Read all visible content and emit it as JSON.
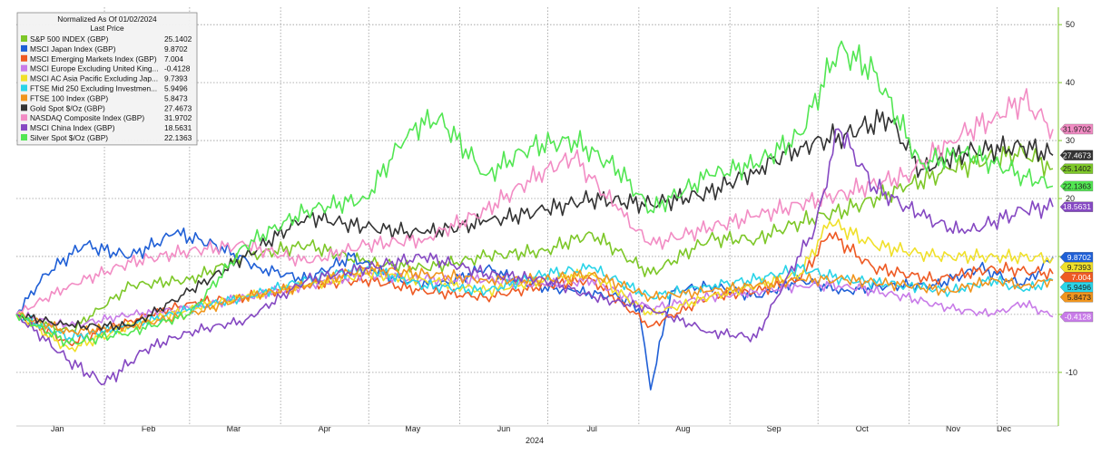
{
  "chart_data": {
    "type": "line",
    "title": "Normalized As Of 01/02/2024",
    "subtitle": "Last Price",
    "xlabel": "2024",
    "ylabel": "",
    "x_range": [
      "2024-01-02",
      "2024-12-20"
    ],
    "ylim": [
      -18,
      53
    ],
    "y_ticks": [
      -10,
      0,
      10,
      20,
      30,
      40,
      50
    ],
    "y_tick_labels": [
      "-10",
      "",
      "10",
      "20",
      "30",
      "40",
      "50"
    ],
    "y_axis_side": "right",
    "months": [
      "Jan",
      "Feb",
      "Mar",
      "Apr",
      "May",
      "Jun",
      "Jul",
      "Aug",
      "Sep",
      "Oct",
      "Nov",
      "Dec"
    ],
    "legend_position": "top-left",
    "grid": true,
    "series": [
      {
        "name": "S&P 500 INDEX (GBP)",
        "last": "25.1402",
        "color": "#7dc728",
        "tag_text": "#222",
        "dates": [
          "2024-01-02",
          "2024-01-20",
          "2024-02-10",
          "2024-03-01",
          "2024-03-20",
          "2024-04-10",
          "2024-04-30",
          "2024-05-20",
          "2024-06-10",
          "2024-06-30",
          "2024-07-16",
          "2024-08-05",
          "2024-08-25",
          "2024-09-10",
          "2024-09-25",
          "2024-10-10",
          "2024-10-31",
          "2024-11-15",
          "2024-11-30",
          "2024-12-10",
          "2024-12-20"
        ],
        "values": [
          0,
          -3,
          5,
          6,
          10,
          12,
          9,
          8,
          10,
          11,
          14,
          7,
          13,
          13,
          16,
          18,
          22,
          25,
          27,
          28,
          25.1402
        ]
      },
      {
        "name": "MSCI Japan Index (GBP)",
        "last": "9.8702",
        "color": "#1f5fd6",
        "tag_text": "#fff",
        "dates": [
          "2024-01-02",
          "2024-01-12",
          "2024-01-25",
          "2024-02-10",
          "2024-02-25",
          "2024-03-10",
          "2024-03-25",
          "2024-04-10",
          "2024-04-25",
          "2024-05-10",
          "2024-05-25",
          "2024-06-10",
          "2024-06-25",
          "2024-07-10",
          "2024-07-25",
          "2024-08-01",
          "2024-08-05",
          "2024-08-12",
          "2024-08-25",
          "2024-09-10",
          "2024-09-25",
          "2024-10-10",
          "2024-10-25",
          "2024-11-10",
          "2024-11-25",
          "2024-12-10",
          "2024-12-20"
        ],
        "values": [
          0,
          7,
          12,
          10,
          14,
          12,
          8,
          6,
          10,
          6,
          5,
          8,
          5,
          4,
          3,
          1,
          -13,
          4,
          5,
          3,
          6,
          4,
          5,
          5,
          8,
          5,
          9.8702
        ]
      },
      {
        "name": "MSCI Emerging Markets Index (GBP)",
        "last": "7.004",
        "color": "#ee5a24",
        "tag_text": "#fff",
        "dates": [
          "2024-01-02",
          "2024-01-20",
          "2024-02-10",
          "2024-03-01",
          "2024-03-20",
          "2024-04-10",
          "2024-04-30",
          "2024-05-20",
          "2024-06-10",
          "2024-06-30",
          "2024-07-16",
          "2024-08-05",
          "2024-08-25",
          "2024-09-10",
          "2024-09-25",
          "2024-10-05",
          "2024-10-20",
          "2024-11-10",
          "2024-11-30",
          "2024-12-20"
        ],
        "values": [
          0,
          -5,
          -1,
          2,
          3,
          5,
          6,
          4,
          3,
          5,
          6,
          -2,
          3,
          4,
          6,
          14,
          8,
          6,
          8,
          7.004
        ]
      },
      {
        "name": "MSCI Europe Excluding United King...",
        "last": "-0.4128",
        "color": "#c87be8",
        "tag_text": "#fff",
        "dates": [
          "2024-01-02",
          "2024-01-20",
          "2024-02-10",
          "2024-03-01",
          "2024-03-20",
          "2024-04-10",
          "2024-04-30",
          "2024-05-20",
          "2024-06-10",
          "2024-06-30",
          "2024-07-16",
          "2024-08-05",
          "2024-08-25",
          "2024-09-10",
          "2024-09-25",
          "2024-10-10",
          "2024-10-31",
          "2024-11-15",
          "2024-11-30",
          "2024-12-10",
          "2024-12-20"
        ],
        "values": [
          0,
          -2,
          0,
          1,
          3,
          5,
          7,
          6,
          6,
          5,
          6,
          1,
          3,
          4,
          5,
          5,
          3,
          1,
          0,
          2,
          -0.4128
        ]
      },
      {
        "name": "MSCI AC Asia Pacific Excluding Jap...",
        "last": "9.7393",
        "color": "#f0e02a",
        "tag_text": "#222",
        "dates": [
          "2024-01-02",
          "2024-01-20",
          "2024-02-10",
          "2024-03-01",
          "2024-03-20",
          "2024-04-10",
          "2024-04-30",
          "2024-05-20",
          "2024-06-10",
          "2024-06-30",
          "2024-07-16",
          "2024-08-05",
          "2024-08-25",
          "2024-09-10",
          "2024-09-25",
          "2024-10-05",
          "2024-10-20",
          "2024-11-10",
          "2024-11-30",
          "2024-12-20"
        ],
        "values": [
          0,
          -6,
          -2,
          1,
          3,
          5,
          7,
          6,
          4,
          6,
          7,
          0,
          3,
          5,
          7,
          16,
          12,
          10,
          10,
          9.7393
        ]
      },
      {
        "name": "FTSE Mid 250 Excluding Investmen...",
        "last": "5.9496",
        "color": "#2ad4e8",
        "tag_text": "#222",
        "dates": [
          "2024-01-02",
          "2024-01-20",
          "2024-02-10",
          "2024-03-01",
          "2024-03-20",
          "2024-04-10",
          "2024-04-30",
          "2024-05-20",
          "2024-06-10",
          "2024-06-30",
          "2024-07-16",
          "2024-08-05",
          "2024-08-25",
          "2024-09-10",
          "2024-09-25",
          "2024-10-10",
          "2024-10-31",
          "2024-11-15",
          "2024-11-30",
          "2024-12-10",
          "2024-12-20"
        ],
        "values": [
          0,
          -4,
          -2,
          1,
          3,
          6,
          8,
          5,
          4,
          7,
          8,
          3,
          5,
          6,
          8,
          6,
          5,
          4,
          6,
          4,
          5.9496
        ]
      },
      {
        "name": "FTSE 100 Index (GBP)",
        "last": "5.8473",
        "color": "#f0951e",
        "tag_text": "#222",
        "dates": [
          "2024-01-02",
          "2024-01-20",
          "2024-02-10",
          "2024-03-01",
          "2024-03-20",
          "2024-04-10",
          "2024-04-30",
          "2024-05-20",
          "2024-06-10",
          "2024-06-30",
          "2024-07-16",
          "2024-08-05",
          "2024-08-25",
          "2024-09-10",
          "2024-09-25",
          "2024-10-10",
          "2024-10-31",
          "2024-11-15",
          "2024-11-30",
          "2024-12-10",
          "2024-12-20"
        ],
        "values": [
          0,
          -3,
          -2,
          0,
          3,
          5,
          8,
          7,
          6,
          6,
          7,
          3,
          4,
          5,
          6,
          6,
          5,
          4,
          6,
          5,
          5.8473
        ]
      },
      {
        "name": "Gold Spot $/Oz (GBP)",
        "last": "27.4673",
        "color": "#333333",
        "tag_text": "#fff",
        "dates": [
          "2024-01-02",
          "2024-01-20",
          "2024-02-10",
          "2024-03-01",
          "2024-03-20",
          "2024-04-10",
          "2024-04-30",
          "2024-05-20",
          "2024-06-10",
          "2024-06-30",
          "2024-07-16",
          "2024-08-05",
          "2024-08-25",
          "2024-09-10",
          "2024-09-25",
          "2024-10-10",
          "2024-10-25",
          "2024-11-05",
          "2024-11-20",
          "2024-12-10",
          "2024-12-20"
        ],
        "values": [
          0,
          -2,
          -2,
          4,
          10,
          17,
          15,
          14,
          16,
          18,
          20,
          19,
          21,
          25,
          29,
          31,
          34,
          25,
          28,
          29,
          27.4673
        ]
      },
      {
        "name": "NASDAQ Composite Index (GBP)",
        "last": "31.9702",
        "color": "#f28cc4",
        "tag_text": "#222",
        "dates": [
          "2024-01-02",
          "2024-01-20",
          "2024-02-10",
          "2024-03-01",
          "2024-03-20",
          "2024-04-10",
          "2024-04-30",
          "2024-05-20",
          "2024-06-10",
          "2024-06-30",
          "2024-07-10",
          "2024-07-25",
          "2024-08-05",
          "2024-08-25",
          "2024-09-10",
          "2024-09-25",
          "2024-10-10",
          "2024-10-31",
          "2024-11-15",
          "2024-11-30",
          "2024-12-10",
          "2024-12-20"
        ],
        "values": [
          0,
          5,
          9,
          11,
          12,
          9,
          12,
          13,
          18,
          25,
          27,
          18,
          12,
          15,
          17,
          19,
          21,
          24,
          30,
          34,
          37,
          31.9702
        ]
      },
      {
        "name": "MSCI China Index (GBP)",
        "last": "18.5631",
        "color": "#8548c2",
        "tag_text": "#fff",
        "dates": [
          "2024-01-02",
          "2024-01-20",
          "2024-02-01",
          "2024-02-15",
          "2024-03-01",
          "2024-03-20",
          "2024-04-10",
          "2024-04-30",
          "2024-05-20",
          "2024-06-10",
          "2024-06-30",
          "2024-07-16",
          "2024-08-05",
          "2024-08-25",
          "2024-09-10",
          "2024-09-20",
          "2024-09-30",
          "2024-10-08",
          "2024-10-20",
          "2024-11-05",
          "2024-11-20",
          "2024-12-10",
          "2024-12-20"
        ],
        "values": [
          0,
          -8,
          -12,
          -6,
          -3,
          -1,
          6,
          8,
          10,
          7,
          6,
          3,
          1,
          -3,
          -4,
          6,
          15,
          32,
          22,
          17,
          14,
          18,
          18.5631
        ]
      },
      {
        "name": "Silver Spot $/Oz (GBP)",
        "last": "22.1363",
        "color": "#52e652",
        "tag_text": "#222",
        "dates": [
          "2024-01-02",
          "2024-01-20",
          "2024-02-10",
          "2024-03-01",
          "2024-03-20",
          "2024-04-10",
          "2024-04-30",
          "2024-05-15",
          "2024-05-25",
          "2024-06-10",
          "2024-06-25",
          "2024-07-10",
          "2024-07-25",
          "2024-08-05",
          "2024-08-25",
          "2024-09-10",
          "2024-09-25",
          "2024-10-08",
          "2024-10-20",
          "2024-11-05",
          "2024-11-20",
          "2024-12-10",
          "2024-12-20"
        ],
        "values": [
          0,
          -5,
          -3,
          0,
          12,
          18,
          20,
          32,
          34,
          24,
          29,
          30,
          25,
          18,
          24,
          26,
          31,
          46,
          42,
          26,
          28,
          24,
          22.1363
        ]
      }
    ]
  }
}
